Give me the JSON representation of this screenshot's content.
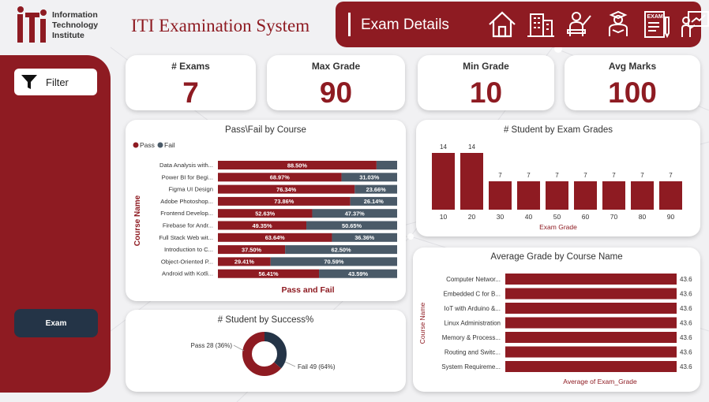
{
  "header": {
    "logo_lines": [
      "Information",
      "Technology",
      "Institute"
    ],
    "title": "ITI Examination System",
    "section_title": "Exam Details",
    "nav_icons": [
      "home-icon",
      "building-icon",
      "instructor-icon",
      "student-icon",
      "exam-icon",
      "presenter-icon"
    ]
  },
  "sidebar": {
    "filter_label": "Filter",
    "exam_button": "Exam"
  },
  "colors": {
    "brand": "#8e1b22",
    "slate": "#4a5a68",
    "navy": "#243447"
  },
  "kpis": [
    {
      "label": "# Exams",
      "value": "7"
    },
    {
      "label": "Max Grade",
      "value": "90"
    },
    {
      "label": "Min Grade",
      "value": "10"
    },
    {
      "label": "Avg Marks",
      "value": "100"
    }
  ],
  "chart_data": [
    {
      "id": "pass-fail",
      "type": "bar",
      "orientation": "horizontal",
      "stacked": "percent",
      "title": "Pass\\Fail by Course",
      "xlabel": "Pass and Fail",
      "ylabel": "Course Name",
      "legend": [
        "Pass",
        "Fail"
      ],
      "categories": [
        "Data Analysis with...",
        "Power BI for Begi...",
        "Figma UI Design",
        "Adobe Photoshop...",
        "Frontend Develop...",
        "Firebase for Andr...",
        "Full Stack Web wit...",
        "Introduction to C...",
        "Object-Oriented P...",
        "Android with Kotli..."
      ],
      "series": [
        {
          "name": "Pass",
          "values": [
            88.5,
            68.97,
            76.34,
            73.86,
            52.63,
            49.35,
            63.64,
            37.5,
            29.41,
            56.41
          ]
        },
        {
          "name": "Fail",
          "values": [
            11.5,
            31.03,
            23.66,
            26.14,
            47.37,
            50.65,
            36.36,
            62.5,
            70.59,
            43.59
          ]
        }
      ],
      "fail_labels_shown": [
        false,
        true,
        true,
        true,
        true,
        true,
        true,
        true,
        true,
        true
      ]
    },
    {
      "id": "exam-grades",
      "type": "bar",
      "title": "# Student by Exam Grades",
      "xlabel": "Exam Grade",
      "categories": [
        "10",
        "20",
        "30",
        "40",
        "50",
        "60",
        "70",
        "80",
        "90"
      ],
      "values": [
        14,
        14,
        7,
        7,
        7,
        7,
        7,
        7,
        7
      ]
    },
    {
      "id": "avg-grade",
      "type": "bar",
      "orientation": "horizontal",
      "title": "Average Grade by Course Name",
      "xlabel": "Average of Exam_Grade",
      "ylabel": "Course Name",
      "categories": [
        "Computer Networ...",
        "Embedded C for B...",
        "IoT with Arduino &...",
        "Linux Administration",
        "Memory & Process...",
        "Routing and Switc...",
        "System Requireme..."
      ],
      "values": [
        43.6,
        43.6,
        43.6,
        43.6,
        43.6,
        43.6,
        43.6
      ]
    },
    {
      "id": "success",
      "type": "pie",
      "donut": true,
      "title": "# Student by Success%",
      "slices": [
        {
          "name": "Pass",
          "value": 28,
          "label": "Pass 28 (36%)"
        },
        {
          "name": "Fail",
          "value": 49,
          "label": "Fail 49 (64%)"
        }
      ]
    }
  ]
}
